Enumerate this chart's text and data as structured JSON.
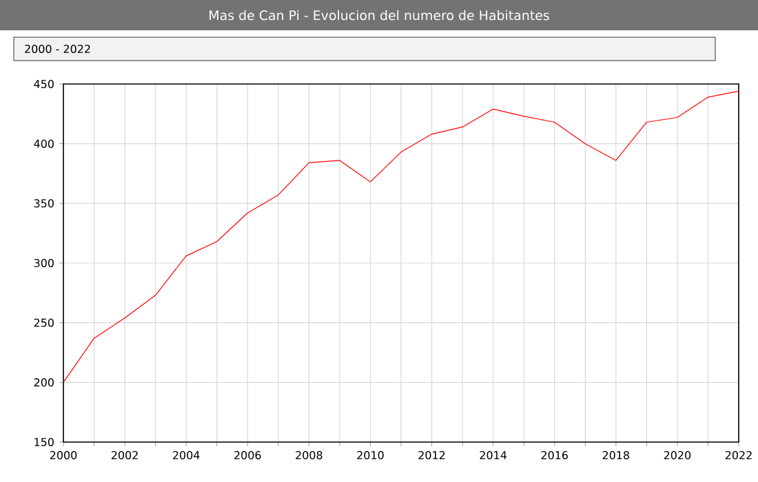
{
  "chart_data": {
    "type": "line",
    "title": "Mas de Can Pi - Evolucion del numero de Habitantes",
    "subtitle": "2000 - 2022",
    "x": [
      2000,
      2001,
      2002,
      2003,
      2004,
      2005,
      2006,
      2007,
      2008,
      2009,
      2010,
      2011,
      2012,
      2013,
      2014,
      2015,
      2016,
      2017,
      2018,
      2019,
      2020,
      2021,
      2022
    ],
    "series": [
      {
        "color": "#ff0000",
        "values": [
          200,
          237,
          254,
          273,
          306,
          318,
          342,
          357,
          384,
          386,
          368,
          393,
          408,
          414,
          429,
          423,
          418,
          400,
          386,
          418,
          422,
          439,
          444
        ]
      }
    ],
    "xlim": [
      2000,
      2022
    ],
    "ylim": [
      150,
      450
    ],
    "xticks": [
      2000,
      {
        "value": 2001,
        "label": null
      },
      2002,
      {
        "value": 2003,
        "label": null
      },
      2004,
      {
        "value": 2005,
        "label": null
      },
      2006,
      {
        "value": 2007,
        "label": null
      },
      2008,
      {
        "value": 2009,
        "label": null
      },
      2010,
      {
        "value": 2011,
        "label": null
      },
      2012,
      {
        "value": 2013,
        "label": null
      },
      2014,
      {
        "value": 2015,
        "label": null
      },
      2016,
      {
        "value": 2017,
        "label": null
      },
      2018,
      {
        "value": 2019,
        "label": null
      },
      2020,
      {
        "value": 2021,
        "label": null
      },
      2022
    ],
    "yticks": [
      150,
      200,
      250,
      300,
      350,
      400,
      450
    ],
    "grid": true,
    "legend": false,
    "marker": "none",
    "line_style": "solid"
  }
}
